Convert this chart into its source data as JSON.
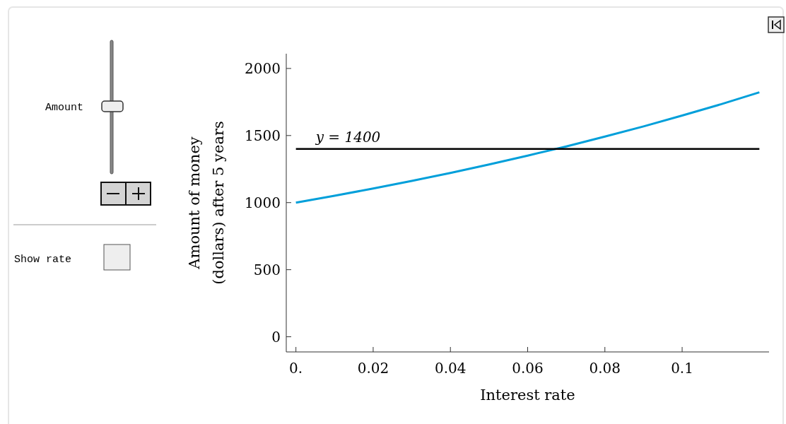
{
  "chart_data": {
    "type": "line",
    "xlabel": "Interest rate",
    "ylabel": "Amount of money\n(dollars) after 5 years",
    "xlim": [
      -0.0025,
      0.1225
    ],
    "ylim": [
      -113,
      2110
    ],
    "xticks": [
      {
        "value": 0,
        "label": "0."
      },
      0.02,
      0.04,
      0.06,
      0.08,
      0.1
    ],
    "yticks": [
      0,
      500,
      1000,
      1500,
      2000
    ],
    "marker": "none",
    "line_style": "solid",
    "annotations": [
      "Amount",
      "Show rate"
    ],
    "series": [
      {
        "color": "#009fda",
        "x": [
          0,
          0.01,
          0.02,
          0.03,
          0.04,
          0.05,
          0.06,
          0.07,
          0.08,
          0.09,
          0.1,
          0.11,
          0.12
        ],
        "values": [
          1000,
          1051,
          1105,
          1162,
          1221,
          1284,
          1350,
          1419,
          1492,
          1568,
          1649,
          1733,
          1822
        ]
      },
      {
        "name": "y = 1400",
        "color": "#000000",
        "x": [
          0,
          0.12
        ],
        "values": [
          1400,
          1400
        ]
      }
    ]
  }
}
